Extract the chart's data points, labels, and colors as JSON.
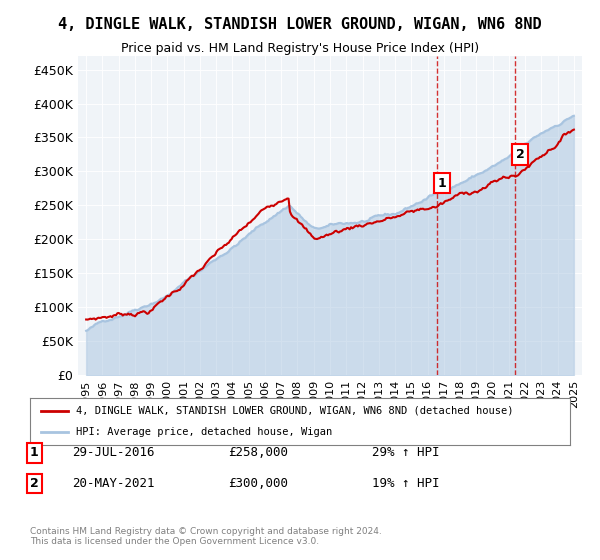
{
  "title": "4, DINGLE WALK, STANDISH LOWER GROUND, WIGAN, WN6 8ND",
  "subtitle": "Price paid vs. HM Land Registry's House Price Index (HPI)",
  "ylabel": "",
  "ylim": [
    0,
    470000
  ],
  "yticks": [
    0,
    50000,
    100000,
    150000,
    200000,
    250000,
    300000,
    350000,
    400000,
    450000
  ],
  "ytick_labels": [
    "£0",
    "£50K",
    "£100K",
    "£150K",
    "£200K",
    "£250K",
    "£300K",
    "£350K",
    "£400K",
    "£450K"
  ],
  "year_start": 1995,
  "year_end": 2025,
  "hpi_color": "#a8c4e0",
  "price_color": "#cc0000",
  "sale1_date": "29-JUL-2016",
  "sale1_price": 258000,
  "sale1_label": "1",
  "sale1_year": 2016.58,
  "sale2_date": "20-MAY-2021",
  "sale2_price": 300000,
  "sale2_label": "2",
  "sale2_year": 2021.38,
  "legend_line1": "4, DINGLE WALK, STANDISH LOWER GROUND, WIGAN, WN6 8ND (detached house)",
  "legend_line2": "HPI: Average price, detached house, Wigan",
  "footnote": "Contains HM Land Registry data © Crown copyright and database right 2024.\nThis data is licensed under the Open Government Licence v3.0.",
  "background_color": "#ffffff",
  "plot_bg_color": "#f0f4f8"
}
